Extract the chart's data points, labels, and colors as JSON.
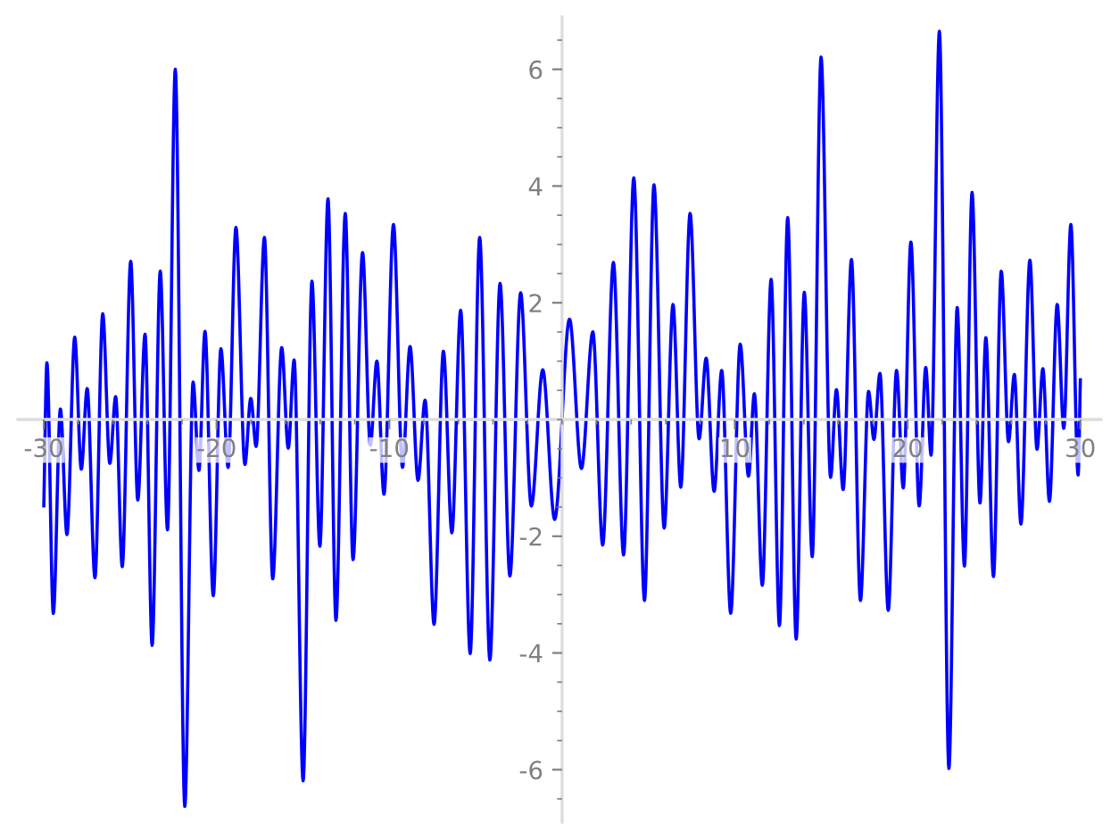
{
  "chart_data": {
    "type": "line",
    "color": "#0000ff",
    "x": [
      -30.0,
      -29.82,
      -29.45,
      -29.04,
      -28.66,
      -28.21,
      -27.83,
      -27.49,
      -27.04,
      -26.59,
      -26.18,
      -25.84,
      -25.46,
      -24.97,
      -24.56,
      -24.14,
      -23.73,
      -23.26,
      -22.84,
      -22.39,
      -21.84,
      -21.36,
      -21.02,
      -20.67,
      -20.19,
      -19.75,
      -19.33,
      -18.88,
      -18.36,
      -18.02,
      -17.71,
      -17.23,
      -16.75,
      -16.23,
      -15.85,
      -15.51,
      -14.99,
      -14.48,
      -14.02,
      -13.55,
      -13.09,
      -12.55,
      -12.1,
      -11.55,
      -11.1,
      -10.72,
      -10.31,
      -9.76,
      -9.24,
      -8.8,
      -8.34,
      -7.93,
      -7.41,
      -6.87,
      -6.38,
      -5.87,
      -5.32,
      -4.77,
      -4.18,
      -3.59,
      -3.02,
      -2.4,
      -1.78,
      -1.12,
      -0.43,
      0.43,
      1.12,
      1.78,
      2.35,
      2.97,
      3.56,
      4.15,
      4.77,
      5.32,
      5.91,
      6.42,
      6.87,
      7.41,
      7.93,
      8.34,
      8.8,
      9.24,
      9.76,
      10.31,
      10.79,
      11.13,
      11.59,
      12.1,
      12.58,
      13.06,
      13.55,
      14.02,
      14.48,
      14.99,
      15.54,
      15.88,
      16.27,
      16.75,
      17.27,
      17.74,
      18.05,
      18.4,
      18.88,
      19.36,
      19.75,
      20.19,
      20.67,
      21.05,
      21.36,
      21.84,
      22.39,
      22.87,
      23.29,
      23.73,
      24.19,
      24.53,
      24.97,
      25.42,
      25.84,
      26.18,
      26.56,
      27.08,
      27.49,
      27.83,
      28.21,
      28.66,
      29.04,
      29.45,
      29.87,
      30.0
    ],
    "values": [
      -1.48,
      0.97,
      -3.32,
      0.18,
      -1.97,
      1.41,
      -0.85,
      0.53,
      -2.71,
      1.81,
      -0.75,
      0.39,
      -2.52,
      2.71,
      -1.38,
      1.46,
      -3.87,
      2.54,
      -1.89,
      6.0,
      -6.63,
      0.64,
      -0.87,
      1.51,
      -3.02,
      1.21,
      -0.82,
      3.29,
      -0.77,
      0.36,
      -0.46,
      3.12,
      -2.73,
      1.23,
      -0.49,
      1.02,
      -6.19,
      2.37,
      -2.17,
      3.78,
      -3.44,
      3.53,
      -2.4,
      2.86,
      -0.44,
      1.0,
      -1.28,
      3.34,
      -0.82,
      1.25,
      -1.04,
      0.33,
      -3.51,
      1.17,
      -1.94,
      1.87,
      -4.01,
      3.12,
      -4.12,
      2.33,
      -2.68,
      2.17,
      -1.48,
      0.85,
      -1.71,
      1.72,
      -0.84,
      1.5,
      -2.15,
      2.69,
      -2.32,
      4.14,
      -3.1,
      4.02,
      -1.86,
      1.97,
      -1.16,
      3.53,
      -0.33,
      1.05,
      -1.23,
      0.84,
      -3.32,
      1.29,
      -0.97,
      0.44,
      -2.84,
      2.4,
      -3.53,
      3.46,
      -3.76,
      2.18,
      -2.35,
      6.21,
      -0.99,
      0.51,
      -1.2,
      2.74,
      -3.1,
      0.48,
      -0.34,
      0.79,
      -3.27,
      0.84,
      -1.17,
      3.04,
      -1.48,
      0.89,
      -0.61,
      6.65,
      -5.98,
      1.92,
      -2.51,
      3.89,
      -1.43,
      1.4,
      -2.69,
      2.54,
      -0.38,
      0.77,
      -1.79,
      2.73,
      -0.51,
      0.87,
      -1.4,
      1.97,
      -0.15,
      3.34,
      -0.95,
      0.68
    ],
    "xlim": [
      -31.5,
      31.2
    ],
    "ylim": [
      -6.9,
      6.9
    ],
    "xticks": [
      -30,
      -20,
      -10,
      10,
      20,
      30
    ],
    "yticks": [
      -6,
      -4,
      -2,
      2,
      4,
      6
    ]
  }
}
